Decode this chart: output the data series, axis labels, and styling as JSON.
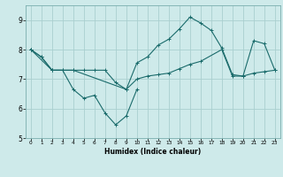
{
  "title": "",
  "xlabel": "Humidex (Indice chaleur)",
  "ylabel": "",
  "bg_color": "#ceeaea",
  "grid_color": "#aacfcf",
  "line_color": "#1a6b6b",
  "xlim": [
    -0.5,
    23.5
  ],
  "ylim": [
    5,
    9.5
  ],
  "yticks": [
    5,
    6,
    7,
    8,
    9
  ],
  "xticks": [
    0,
    1,
    2,
    3,
    4,
    5,
    6,
    7,
    8,
    9,
    10,
    11,
    12,
    13,
    14,
    15,
    16,
    17,
    18,
    19,
    20,
    21,
    22,
    23
  ],
  "line1_x": [
    0,
    1,
    2,
    3,
    4,
    5,
    6,
    7,
    8,
    9,
    10,
    11,
    12,
    13,
    14,
    15,
    16,
    17,
    18,
    19,
    20,
    21,
    22,
    23
  ],
  "line1_y": [
    8.0,
    7.75,
    7.3,
    7.3,
    7.3,
    7.3,
    7.3,
    7.3,
    6.88,
    6.65,
    7.55,
    7.75,
    8.15,
    8.35,
    8.7,
    9.1,
    8.9,
    8.65,
    8.05,
    7.15,
    7.1,
    8.3,
    8.2,
    7.3
  ],
  "line2_x": [
    0,
    2,
    4,
    9,
    10,
    11,
    12,
    13,
    14,
    15,
    16,
    18,
    19,
    20,
    21,
    22,
    23
  ],
  "line2_y": [
    8.0,
    7.3,
    7.3,
    6.65,
    7.0,
    7.1,
    7.15,
    7.2,
    7.35,
    7.5,
    7.6,
    8.0,
    7.1,
    7.1,
    7.2,
    7.25,
    7.3
  ],
  "line3_x": [
    0,
    1,
    2,
    3,
    4,
    5,
    6,
    7,
    8,
    9,
    10
  ],
  "line3_y": [
    8.0,
    7.75,
    7.3,
    7.3,
    6.65,
    6.35,
    6.45,
    5.85,
    5.45,
    5.75,
    6.65
  ]
}
